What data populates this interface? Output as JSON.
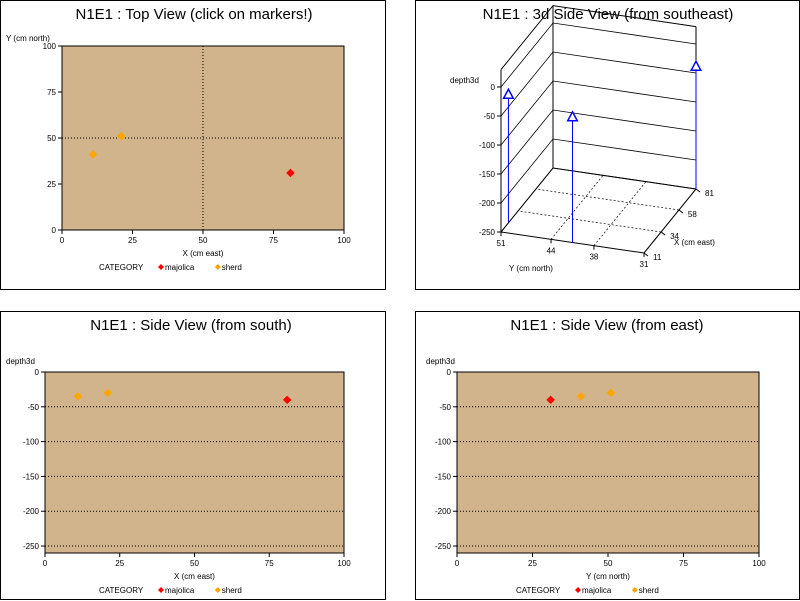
{
  "colors": {
    "plot_bg": "#d2b48c",
    "majolica": "#ff0000",
    "sherd": "#ffa500",
    "axis3d_marker": "#0000ff"
  },
  "legend": {
    "title": "CATEGORY",
    "items": [
      {
        "label": "majolica",
        "color": "#ff0000"
      },
      {
        "label": "sherd",
        "color": "#ffa500"
      }
    ]
  },
  "chart_data": [
    {
      "type": "scatter",
      "title": "N1E1 : Top View (click on markers!)",
      "xlabel": "X (cm east)",
      "ylabel": "Y (cm north)",
      "xlim": [
        0,
        100
      ],
      "ylim": [
        0,
        100
      ],
      "xticks": [
        0,
        25,
        50,
        75,
        100
      ],
      "yticks": [
        0,
        25,
        50,
        75,
        100
      ],
      "refline_x": 50,
      "refline_y": 50,
      "points": [
        {
          "x": 81,
          "y": 31,
          "category": "majolica"
        },
        {
          "x": 11,
          "y": 41,
          "category": "sherd"
        },
        {
          "x": 21,
          "y": 51,
          "category": "sherd"
        }
      ],
      "legend": true
    },
    {
      "type": "scatter3d",
      "title": "N1E1 : 3d Side View (from southeast)",
      "zlabel": "depth3d",
      "xlabel": "X (cm east)",
      "ylabel": "Y (cm north)",
      "zticks": [
        0,
        -50,
        -100,
        -150,
        -200,
        -250
      ],
      "xticks": [
        11,
        34,
        58,
        81
      ],
      "yticks": [
        51,
        44,
        38,
        31
      ],
      "points": [
        {
          "x": 81,
          "y": 31,
          "z": -40
        },
        {
          "x": 11,
          "y": 41,
          "z": -35
        },
        {
          "x": 21,
          "y": 51,
          "z": -30
        }
      ]
    },
    {
      "type": "scatter",
      "title": "N1E1 : Side View (from south)",
      "xlabel": "X (cm east)",
      "ylabel": "depth3d",
      "xlim": [
        0,
        100
      ],
      "ylim": [
        -260,
        0
      ],
      "xticks": [
        0,
        25,
        50,
        75,
        100
      ],
      "yticks": [
        0,
        -50,
        -100,
        -150,
        -200,
        -250
      ],
      "points": [
        {
          "x": 81,
          "y": -40,
          "category": "majolica"
        },
        {
          "x": 11,
          "y": -35,
          "category": "sherd"
        },
        {
          "x": 21,
          "y": -30,
          "category": "sherd"
        }
      ],
      "legend": true
    },
    {
      "type": "scatter",
      "title": "N1E1 : Side View (from east)",
      "xlabel": "Y (cm north)",
      "ylabel": "depth3d",
      "xlim": [
        0,
        100
      ],
      "ylim": [
        -260,
        0
      ],
      "xticks": [
        0,
        25,
        50,
        75,
        100
      ],
      "yticks": [
        0,
        -50,
        -100,
        -150,
        -200,
        -250
      ],
      "points": [
        {
          "x": 31,
          "y": -40,
          "category": "majolica"
        },
        {
          "x": 41,
          "y": -35,
          "category": "sherd"
        },
        {
          "x": 51,
          "y": -30,
          "category": "sherd"
        }
      ],
      "legend": true
    }
  ]
}
